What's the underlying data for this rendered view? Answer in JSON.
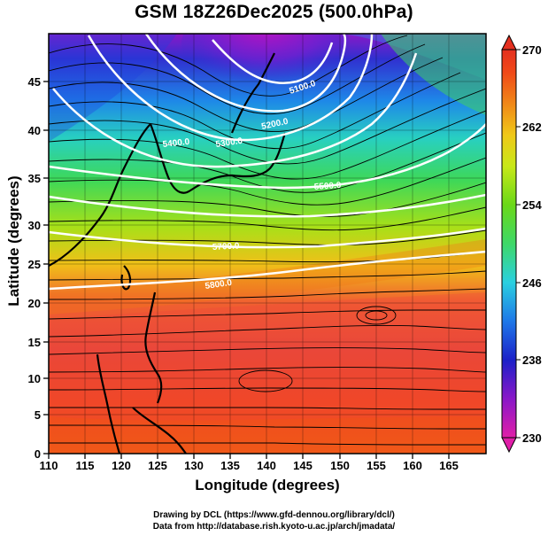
{
  "title": "GSM 18Z26Dec2025 (500.0hPa)",
  "x_axis": {
    "label": "Longitude (degrees)",
    "ticks": [
      "110",
      "115",
      "120",
      "125",
      "130",
      "135",
      "140",
      "145",
      "150",
      "155",
      "160",
      "165"
    ],
    "range": [
      110,
      170
    ]
  },
  "y_axis": {
    "label": "Latitude  (degrees)",
    "ticks": [
      "0",
      "5",
      "10",
      "15",
      "20",
      "25",
      "30",
      "35",
      "40",
      "45"
    ],
    "range": [
      0,
      50
    ]
  },
  "colorbar": {
    "ticks": [
      "230",
      "238",
      "246",
      "254",
      "262",
      "270"
    ],
    "range": [
      230,
      270
    ],
    "colors": [
      "#e01ea8",
      "#8a18c8",
      "#1c20c8",
      "#1e78e8",
      "#2ad0e0",
      "#3ed868",
      "#6ad818",
      "#c8e818",
      "#f0c818",
      "#f08818",
      "#f04a18",
      "#e43020"
    ]
  },
  "contours": [
    {
      "label": "5100.0",
      "value": 5100
    },
    {
      "label": "5200.0",
      "value": 5200
    },
    {
      "label": "5300.0",
      "value": 5300
    },
    {
      "label": "5400.0",
      "value": 5400
    },
    {
      "label": "5500.0",
      "value": 5500
    },
    {
      "label": "5700.0",
      "value": 5700
    },
    {
      "label": "5800.0",
      "value": 5800
    }
  ],
  "credits": [
    "Drawing by DCL (https://www.gfd-dennou.org/library/dcl/)",
    "Data from http://database.rish.kyoto-u.ac.jp/arch/jmadata/"
  ]
}
